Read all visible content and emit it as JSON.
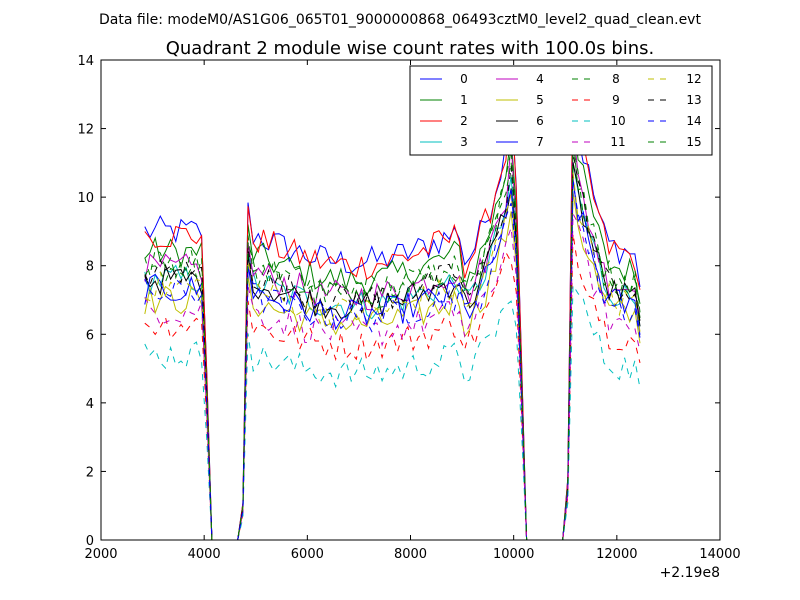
{
  "chart_data": {
    "type": "line",
    "suptitle": "Data file: modeM0/AS1G06_065T01_9000000868_06493cztM0_level2_quad_clean.evt",
    "title": "Quadrant 2 module wise count rates with 100.0s bins.",
    "xlabel": "",
    "ylabel": "",
    "x_offset_label": "+2.19e8",
    "xlim": [
      2000,
      14000
    ],
    "ylim": [
      0,
      14
    ],
    "xticks": [
      2000,
      4000,
      6000,
      8000,
      10000,
      12000,
      14000
    ],
    "yticks": [
      0,
      2,
      4,
      6,
      8,
      10,
      12,
      14
    ],
    "legend_position": "top-right",
    "legend_columns": 4,
    "series": [
      {
        "name": "0",
        "color": "#0000ff",
        "dash": "solid",
        "base": 9.0,
        "f": 1.5
      },
      {
        "name": "1",
        "color": "#008000",
        "dash": "solid",
        "base": 8.4,
        "f": 1.4
      },
      {
        "name": "2",
        "color": "#ff0000",
        "dash": "solid",
        "base": 8.9,
        "f": 1.6
      },
      {
        "name": "3",
        "color": "#00bfbf",
        "dash": "solid",
        "base": 7.6,
        "f": 1.3
      },
      {
        "name": "4",
        "color": "#bf00bf",
        "dash": "solid",
        "base": 7.9,
        "f": 1.6
      },
      {
        "name": "5",
        "color": "#bfbf00",
        "dash": "solid",
        "base": 7.0,
        "f": 1.3
      },
      {
        "name": "6",
        "color": "#000000",
        "dash": "solid",
        "base": 7.6,
        "f": 1.3
      },
      {
        "name": "7",
        "color": "#0000ff",
        "dash": "solid",
        "base": 7.3,
        "f": 1.3
      },
      {
        "name": "8",
        "color": "#008000",
        "dash": "dashed",
        "base": 7.9,
        "f": 1.3
      },
      {
        "name": "9",
        "color": "#ff0000",
        "dash": "dashed",
        "base": 6.3,
        "f": 1.2
      },
      {
        "name": "10",
        "color": "#00bfbf",
        "dash": "dashed",
        "base": 5.4,
        "f": 1.1
      },
      {
        "name": "11",
        "color": "#bf00bf",
        "dash": "dashed",
        "base": 6.7,
        "f": 1.2
      },
      {
        "name": "12",
        "color": "#bfbf00",
        "dash": "dashed",
        "base": 7.4,
        "f": 1.3
      },
      {
        "name": "13",
        "color": "#000000",
        "dash": "dashed",
        "base": 7.8,
        "f": 1.3
      },
      {
        "name": "14",
        "color": "#0000ff",
        "dash": "dashed",
        "base": 7.2,
        "f": 1.3
      },
      {
        "name": "15",
        "color": "#008000",
        "dash": "dashed",
        "base": 8.1,
        "f": 1.3
      }
    ],
    "segments": [
      {
        "x_start": 2850,
        "x_end": 3950,
        "trend": "flat",
        "drop_to_zero_at": 4150
      },
      {
        "x_start": 4850,
        "x_end": 9950,
        "trend": "rise_at_end",
        "drop_to_zero_at": 10250
      },
      {
        "x_start": 11150,
        "x_end": 12450,
        "trend": "decay",
        "drop_to_zero_at": null
      }
    ],
    "gaps": [
      {
        "from": 4150,
        "to": 4650,
        "value": 0
      },
      {
        "from": 10250,
        "to": 10950,
        "value": 0
      }
    ]
  }
}
